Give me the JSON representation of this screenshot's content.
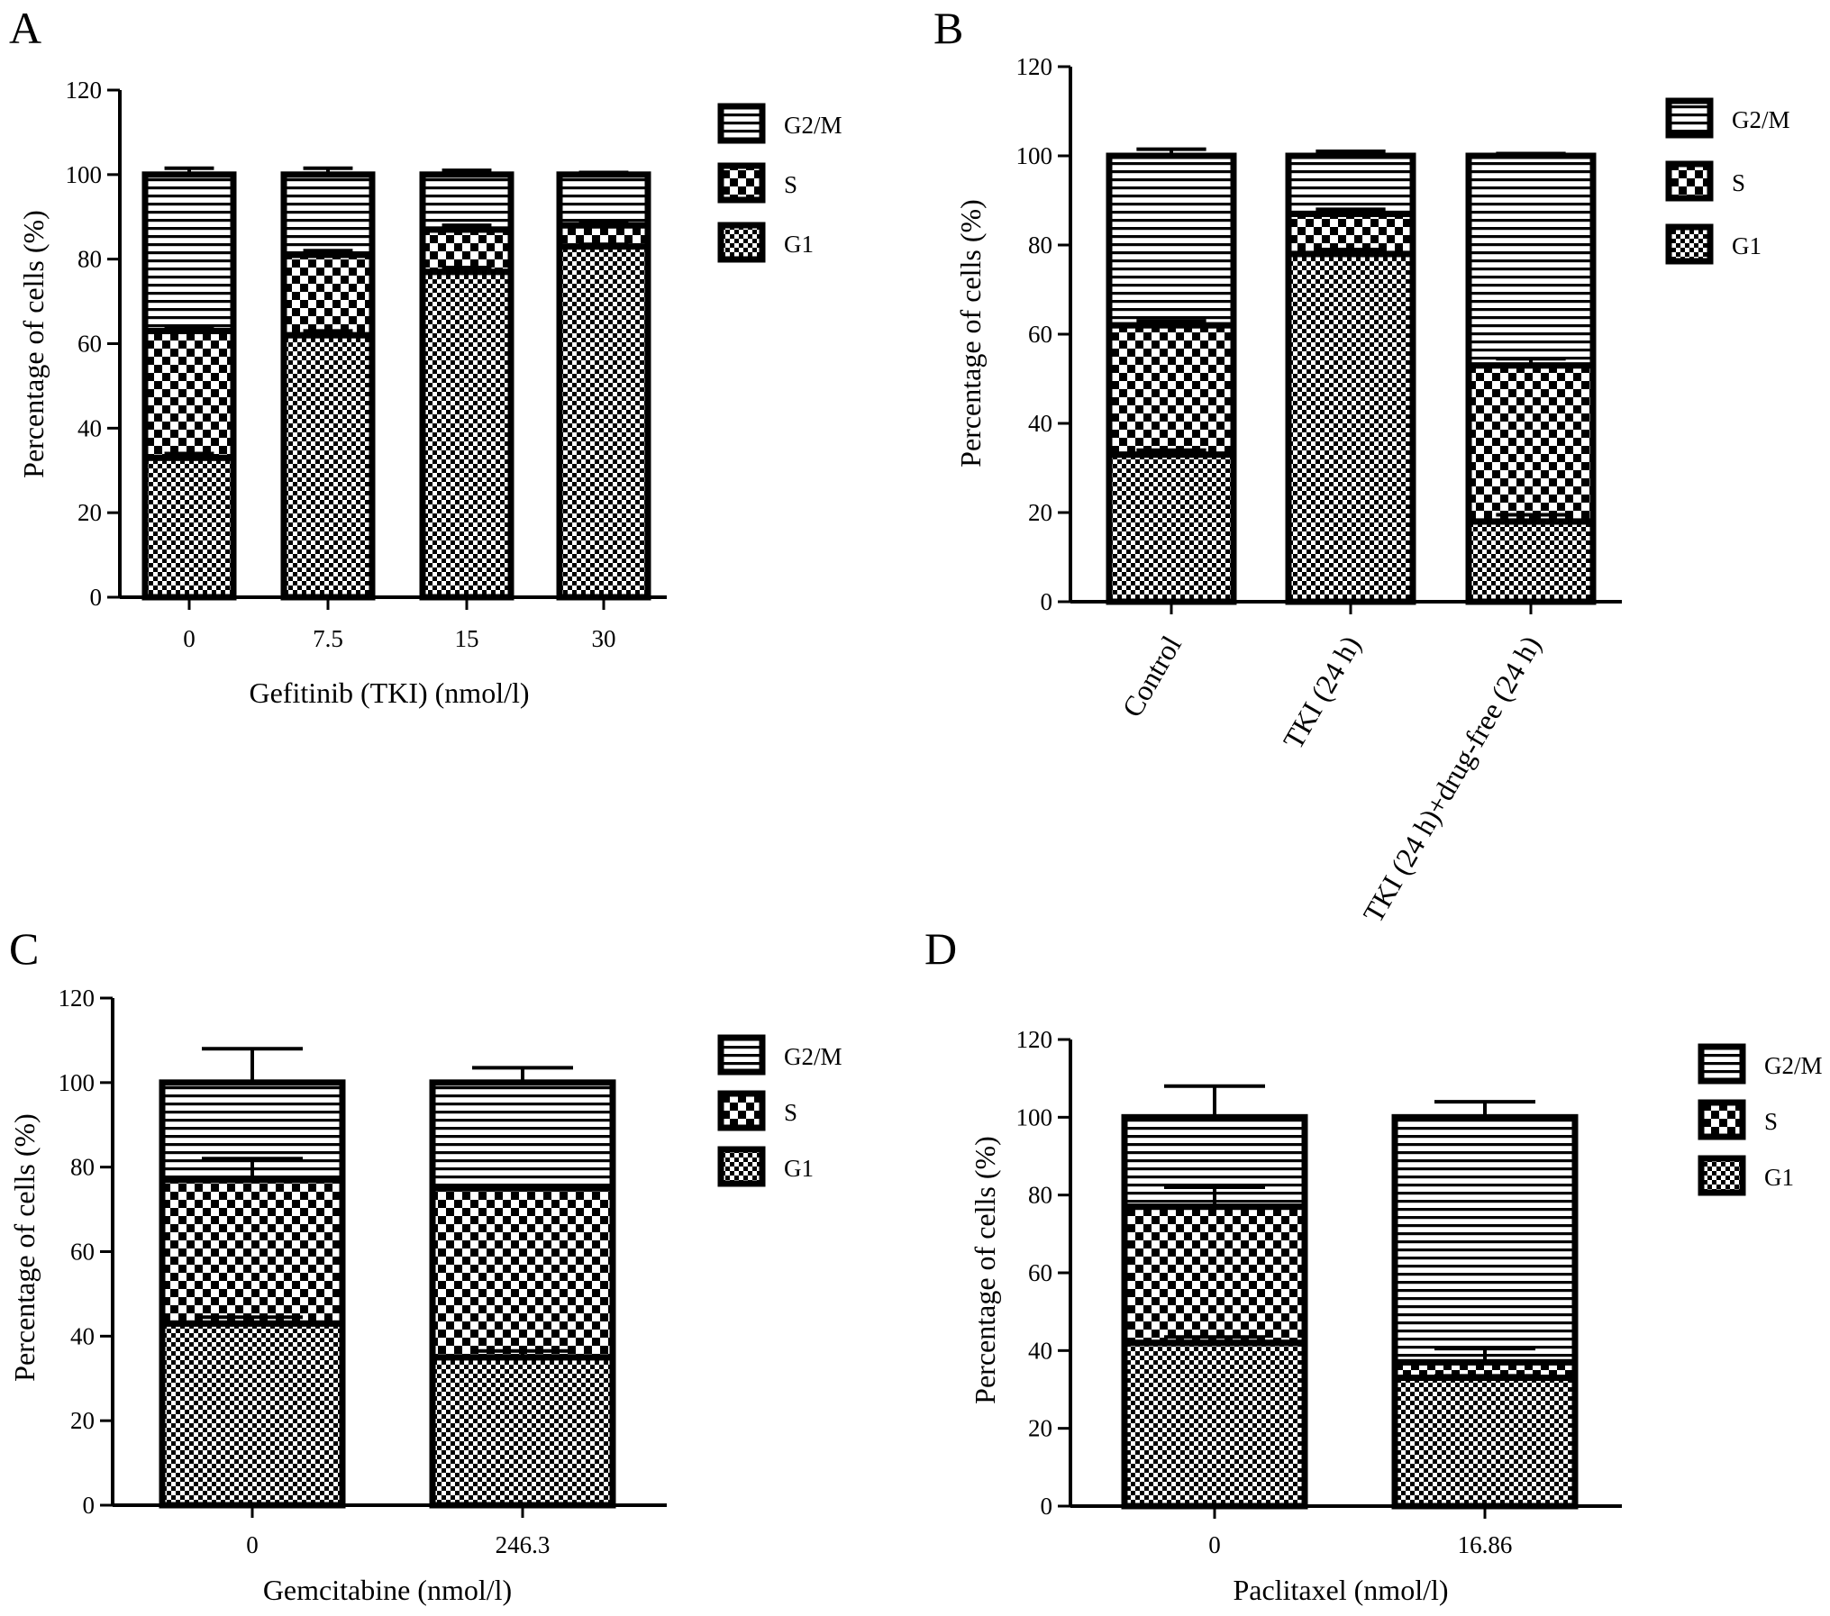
{
  "figure": {
    "colors": {
      "ink": "#000000",
      "paper": "#ffffff"
    },
    "legend_fills": {
      "G2/M": "stripes",
      "S": "large-checker",
      "G1": "fine-checker"
    }
  },
  "chart_data": [
    {
      "panel": "A",
      "type": "bar",
      "stacked": true,
      "categories": [
        "0",
        "7.5",
        "15",
        "30"
      ],
      "series": [
        {
          "name": "G1",
          "values": [
            33,
            62,
            77,
            83
          ],
          "error": [
            1.0,
            1.0,
            1.0,
            0.5
          ]
        },
        {
          "name": "S",
          "values": [
            30,
            19,
            10,
            5
          ],
          "error": [
            1.0,
            1.0,
            1.0,
            0.5
          ]
        },
        {
          "name": "G2/M",
          "values": [
            37,
            19,
            13,
            12
          ],
          "error": [
            1.5,
            1.5,
            1.0,
            0.5
          ]
        }
      ],
      "xlabel": "Gefitinib (TKI) (nmol/l)",
      "ylabel": "Percentage of cells (%)",
      "ylim": [
        0,
        120
      ],
      "yticks": [
        0,
        20,
        40,
        60,
        80,
        100,
        120
      ],
      "legend": [
        "G2/M",
        "S",
        "G1"
      ],
      "legend_position": "right",
      "grid": false
    },
    {
      "panel": "B",
      "type": "bar",
      "stacked": true,
      "categories": [
        "Control",
        "TKI (24 h)",
        "TKI (24 h)+drug-free (24 h)"
      ],
      "series": [
        {
          "name": "G1",
          "values": [
            33,
            78,
            18
          ],
          "error": [
            1.0,
            1.0,
            1.5
          ]
        },
        {
          "name": "S",
          "values": [
            29,
            9,
            35
          ],
          "error": [
            1.0,
            1.0,
            1.5
          ]
        },
        {
          "name": "G2/M",
          "values": [
            38,
            13,
            47
          ],
          "error": [
            1.5,
            1.0,
            0.5
          ]
        }
      ],
      "ylabel": "Percentage of cells (%)",
      "ylim": [
        0,
        120
      ],
      "yticks": [
        0,
        20,
        40,
        60,
        80,
        100,
        120
      ],
      "legend": [
        "G2/M",
        "S",
        "G1"
      ],
      "legend_position": "right",
      "grid": false
    },
    {
      "panel": "C",
      "type": "bar",
      "stacked": true,
      "categories": [
        "0",
        "246.3"
      ],
      "series": [
        {
          "name": "G1",
          "values": [
            43,
            35
          ],
          "error": [
            1.5,
            1.5
          ]
        },
        {
          "name": "S",
          "values": [
            34,
            40
          ],
          "error": [
            5.0,
            0.5
          ]
        },
        {
          "name": "G2/M",
          "values": [
            23,
            25
          ],
          "error": [
            8.0,
            3.5
          ]
        }
      ],
      "xlabel": "Gemcitabine (nmol/l)",
      "ylabel": "Percentage of cells (%)",
      "ylim": [
        0,
        120
      ],
      "yticks": [
        0,
        20,
        40,
        60,
        80,
        100,
        120
      ],
      "legend": [
        "G2/M",
        "S",
        "G1"
      ],
      "legend_position": "right",
      "grid": false
    },
    {
      "panel": "D",
      "type": "bar",
      "stacked": true,
      "categories": [
        "0",
        "16.86"
      ],
      "series": [
        {
          "name": "G1",
          "values": [
            42,
            33
          ],
          "error": [
            1.5,
            0.5
          ]
        },
        {
          "name": "S",
          "values": [
            35,
            4
          ],
          "error": [
            5.0,
            3.5
          ]
        },
        {
          "name": "G2/M",
          "values": [
            23,
            63
          ],
          "error": [
            8.0,
            4.0
          ]
        }
      ],
      "xlabel": "Paclitaxel (nmol/l)",
      "ylabel": "Percentage of cells (%)",
      "ylim": [
        0,
        120
      ],
      "yticks": [
        0,
        20,
        40,
        60,
        80,
        100,
        120
      ],
      "legend": [
        "G2/M",
        "S",
        "G1"
      ],
      "legend_position": "right",
      "grid": false
    }
  ]
}
